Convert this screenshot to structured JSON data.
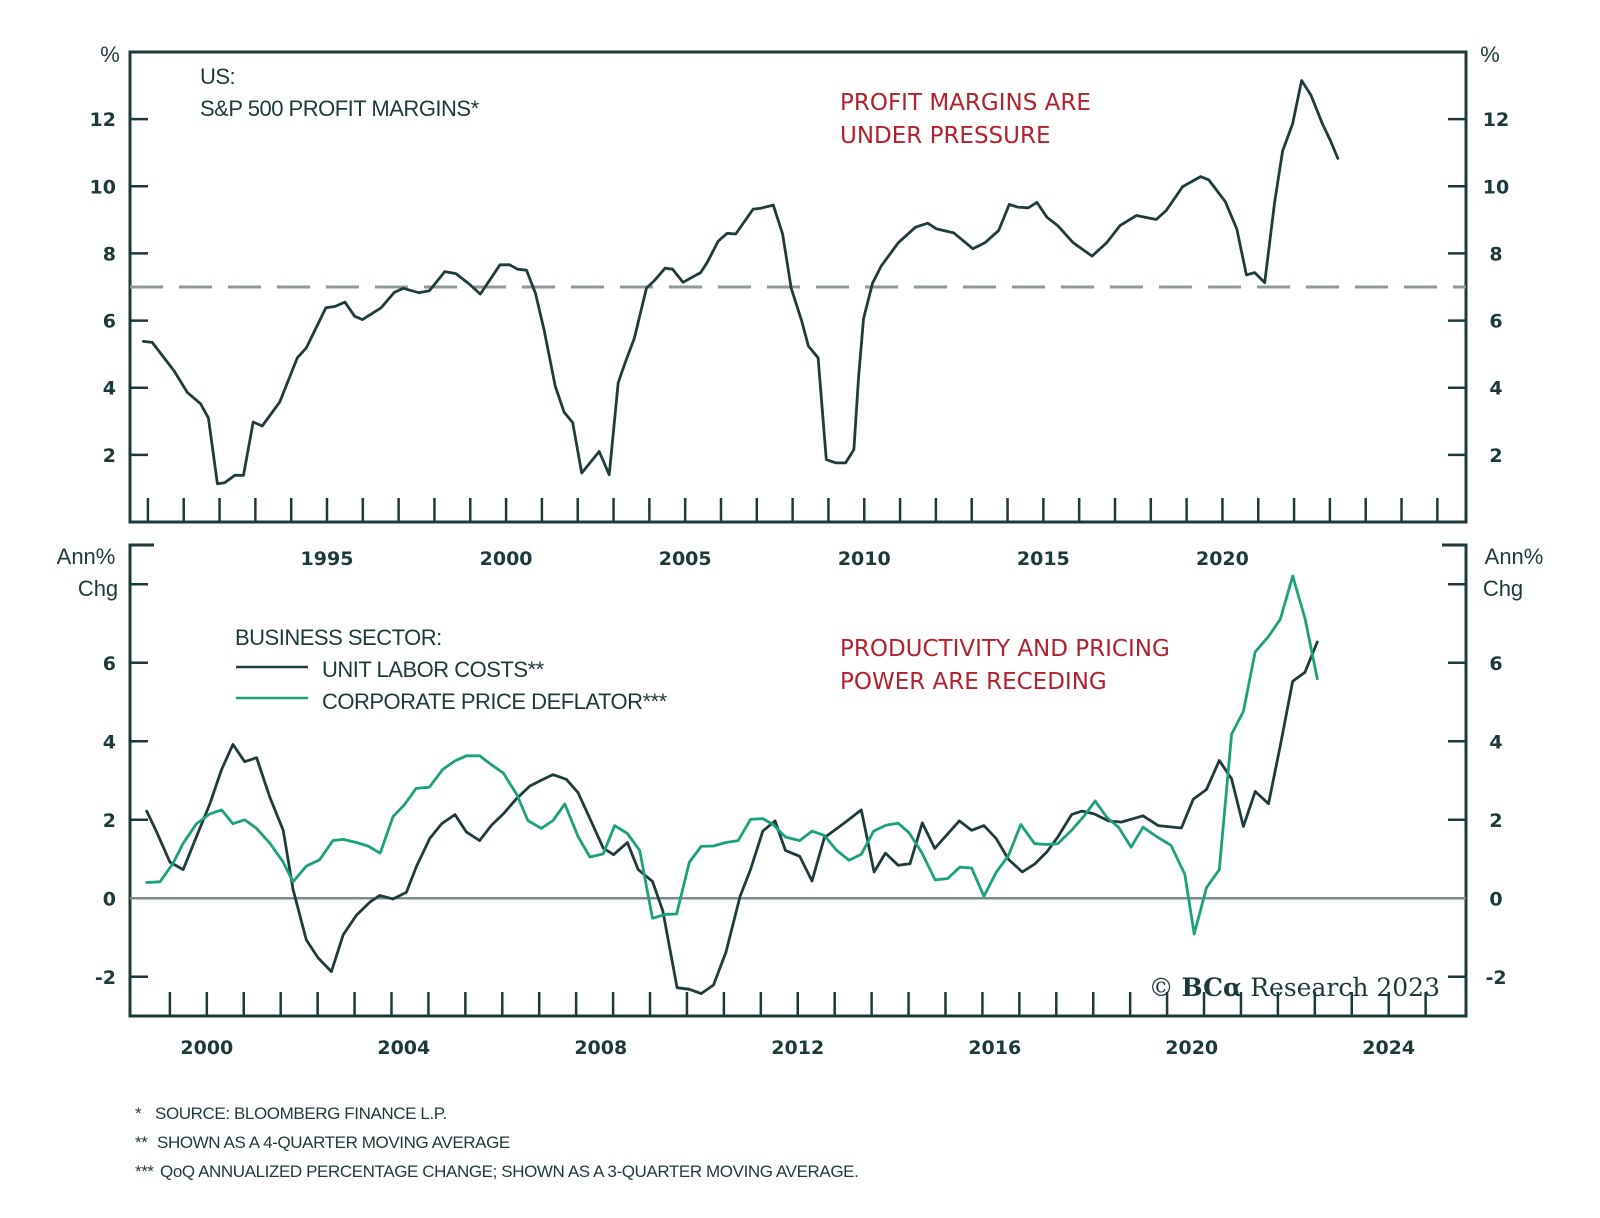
{
  "colors": {
    "ink": "#1d3a3a",
    "ulc": "#1f3c3c",
    "deflator": "#1ba17c",
    "annotation": "#b3202e",
    "dashed": "#8f9a98",
    "zero": "#7d8a8a"
  },
  "chart_data": [
    {
      "type": "line",
      "title_line1": "US:",
      "title_line2": "S&P 500 PROFIT MARGINS*",
      "annotation_line1": "PROFIT MARGINS ARE",
      "annotation_line2": "UNDER PRESSURE",
      "ylabel_left": "%",
      "ylabel_right": "%",
      "ylim": [
        0.0,
        14.0
      ],
      "xlim": [
        1989.5,
        2026.8
      ],
      "y_ticks": [
        2,
        4,
        6,
        8,
        10,
        12
      ],
      "y_tick_labels": [
        "2",
        "4",
        "6",
        "8",
        "10",
        "12"
      ],
      "x_ticks": [
        1995,
        2000,
        2005,
        2010,
        2015,
        2020
      ],
      "x_tick_labels": [
        "1995",
        "2000",
        "2005",
        "2010",
        "2015",
        "2020"
      ],
      "reference_line": {
        "value": 7.0,
        "style": "dashed"
      },
      "grid": false,
      "series": [
        {
          "name": "S&P 500 Profit Margins",
          "x": [
            1989.87,
            1990.12,
            1990.73,
            1991.1,
            1991.47,
            1991.69,
            1991.94,
            1992.14,
            1992.43,
            1992.67,
            1992.94,
            1993.19,
            1993.68,
            1994.17,
            1994.42,
            1994.97,
            1995.22,
            1995.5,
            1995.77,
            1995.99,
            1996.51,
            1996.88,
            1997.13,
            1997.56,
            1997.86,
            1998.29,
            1998.6,
            1998.97,
            1999.28,
            1999.83,
            2000.1,
            2000.32,
            2000.57,
            2000.82,
            2001.06,
            2001.37,
            2001.62,
            2001.86,
            2002.11,
            2002.6,
            2002.88,
            2003.13,
            2003.34,
            2003.58,
            2003.92,
            2004.14,
            2004.44,
            2004.65,
            2004.94,
            2005.43,
            2005.61,
            2005.92,
            2006.17,
            2006.41,
            2006.9,
            2007.09,
            2007.46,
            2007.72,
            2007.96,
            2008.25,
            2008.44,
            2008.71,
            2008.94,
            2009.21,
            2009.48,
            2009.71,
            2009.84,
            2009.98,
            2010.23,
            2010.47,
            2010.95,
            2011.43,
            2011.77,
            2012.02,
            2012.5,
            2013.03,
            2013.37,
            2013.75,
            2014.05,
            2014.28,
            2014.58,
            2014.82,
            2015.1,
            2015.4,
            2015.83,
            2016.36,
            2016.77,
            2017.14,
            2017.6,
            2018.15,
            2018.43,
            2018.89,
            2019.39,
            2019.62,
            2020.08,
            2020.4,
            2020.67,
            2020.9,
            2021.18,
            2021.46,
            2021.68,
            2021.96,
            2022.21,
            2022.47,
            2022.79,
            2023.02,
            2023.22
          ],
          "values": [
            5.38,
            5.35,
            4.5,
            3.86,
            3.52,
            3.1,
            1.14,
            1.17,
            1.39,
            1.39,
            2.98,
            2.86,
            3.57,
            4.89,
            5.18,
            6.38,
            6.42,
            6.55,
            6.13,
            6.03,
            6.38,
            6.84,
            6.96,
            6.83,
            6.89,
            7.46,
            7.4,
            7.09,
            6.79,
            7.66,
            7.66,
            7.53,
            7.5,
            6.81,
            5.72,
            4.05,
            3.27,
            2.96,
            1.46,
            2.1,
            1.41,
            4.15,
            4.79,
            5.47,
            6.97,
            7.19,
            7.56,
            7.53,
            7.14,
            7.43,
            7.72,
            8.36,
            8.6,
            8.58,
            9.32,
            9.34,
            9.44,
            8.58,
            6.96,
            6.0,
            5.24,
            4.89,
            1.86,
            1.76,
            1.76,
            2.16,
            4.28,
            6.05,
            7.11,
            7.62,
            8.32,
            8.78,
            8.9,
            8.73,
            8.61,
            8.14,
            8.32,
            8.68,
            9.46,
            9.38,
            9.36,
            9.52,
            9.08,
            8.83,
            8.32,
            7.92,
            8.32,
            8.83,
            9.13,
            9.01,
            9.28,
            9.99,
            10.29,
            10.19,
            9.54,
            8.73,
            7.36,
            7.43,
            7.13,
            9.54,
            11.05,
            11.86,
            13.15,
            12.72,
            11.86,
            11.35,
            10.83
          ]
        }
      ]
    },
    {
      "type": "line",
      "legend_title": "BUSINESS SECTOR:",
      "annotation_line1": "PRODUCTIVITY AND PRICING",
      "annotation_line2": "POWER ARE RECEDING",
      "ylabel_left_line1": "Ann%",
      "ylabel_left_line2": "Chg",
      "ylabel_right_line1": "Ann%",
      "ylabel_right_line2": "Chg",
      "ylim": [
        -3.0,
        9.0
      ],
      "xlim": [
        1998.44,
        2025.57
      ],
      "y_ticks": [
        -2,
        0,
        2,
        4,
        6,
        8
      ],
      "y_tick_labels": [
        "-2",
        "0",
        "2",
        "4",
        "6",
        ""
      ],
      "x_ticks": [
        2000,
        2004,
        2008,
        2012,
        2016,
        2020,
        2024
      ],
      "x_tick_labels": [
        "2000",
        "2004",
        "2008",
        "2012",
        "2016",
        "2020",
        "2024"
      ],
      "reference_line": {
        "value": 0,
        "style": "solid"
      },
      "legend_position": "top-left",
      "grid": false,
      "series": [
        {
          "name": "UNIT LABOR COSTS**",
          "x": [
            1998.78,
            1998.98,
            1999.25,
            1999.52,
            1999.76,
            2000.06,
            2000.3,
            2000.53,
            2000.77,
            2001.01,
            2001.28,
            2001.55,
            2001.75,
            2002.02,
            2002.26,
            2002.53,
            2002.77,
            2003.04,
            2003.31,
            2003.51,
            2003.78,
            2004.05,
            2004.26,
            2004.53,
            2004.77,
            2005.04,
            2005.27,
            2005.54,
            2005.78,
            2006.02,
            2006.29,
            2006.56,
            2006.83,
            2007.03,
            2007.3,
            2007.54,
            2007.78,
            2008.05,
            2008.26,
            2008.54,
            2008.76,
            2009.05,
            2009.26,
            2009.55,
            2009.8,
            2010.04,
            2010.29,
            2010.54,
            2010.83,
            2011.04,
            2011.29,
            2011.54,
            2011.75,
            2012.04,
            2012.29,
            2012.54,
            2012.97,
            2013.29,
            2013.55,
            2013.78,
            2014.04,
            2014.28,
            2014.53,
            2014.78,
            2015.28,
            2015.53,
            2015.78,
            2016.03,
            2016.28,
            2016.56,
            2016.81,
            2017.06,
            2017.28,
            2017.56,
            2017.77,
            2018.02,
            2018.31,
            2018.57,
            2019.01,
            2019.32,
            2019.79,
            2020.03,
            2020.3,
            2020.56,
            2020.81,
            2021.05,
            2021.29,
            2021.56,
            2021.8,
            2022.05,
            2022.3,
            2022.55
          ],
          "values": [
            2.22,
            1.69,
            0.92,
            0.73,
            1.48,
            2.4,
            3.28,
            3.92,
            3.48,
            3.58,
            2.57,
            1.73,
            0.23,
            -1.06,
            -1.52,
            -1.87,
            -0.93,
            -0.43,
            -0.1,
            0.07,
            -0.02,
            0.15,
            0.82,
            1.53,
            1.9,
            2.13,
            1.69,
            1.47,
            1.86,
            2.15,
            2.54,
            2.86,
            3.03,
            3.15,
            3.03,
            2.69,
            2.03,
            1.28,
            1.11,
            1.42,
            0.73,
            0.43,
            -0.32,
            -2.28,
            -2.32,
            -2.43,
            -2.21,
            -1.38,
            0.05,
            0.73,
            1.71,
            1.97,
            1.22,
            1.07,
            0.44,
            1.54,
            1.94,
            2.25,
            0.67,
            1.15,
            0.84,
            0.88,
            1.92,
            1.27,
            1.97,
            1.73,
            1.85,
            1.52,
            0.99,
            0.67,
            0.87,
            1.18,
            1.56,
            2.13,
            2.22,
            2.15,
            1.97,
            1.94,
            2.1,
            1.85,
            1.79,
            2.52,
            2.77,
            3.51,
            3.04,
            1.83,
            2.72,
            2.41,
            3.89,
            5.53,
            5.76,
            6.53
          ]
        },
        {
          "name": "CORPORATE PRICE DEFLATOR***",
          "x": [
            1998.78,
            1999.05,
            1999.32,
            1999.52,
            1999.79,
            2000.06,
            2000.3,
            2000.53,
            2000.77,
            2001.01,
            2001.28,
            2001.55,
            2001.75,
            2002.02,
            2002.29,
            2002.56,
            2002.77,
            2003.04,
            2003.27,
            2003.52,
            2003.78,
            2004.01,
            2004.25,
            2004.52,
            2004.79,
            2005.04,
            2005.27,
            2005.54,
            2005.78,
            2006.02,
            2006.29,
            2006.52,
            2006.79,
            2007.03,
            2007.27,
            2007.54,
            2007.78,
            2008.05,
            2008.28,
            2008.54,
            2008.79,
            2009.05,
            2009.31,
            2009.54,
            2009.8,
            2010.04,
            2010.29,
            2010.54,
            2010.79,
            2011.04,
            2011.29,
            2011.5,
            2011.75,
            2012.04,
            2012.29,
            2012.54,
            2012.79,
            2013.04,
            2013.29,
            2013.54,
            2013.79,
            2014.04,
            2014.26,
            2014.51,
            2014.79,
            2015.04,
            2015.29,
            2015.53,
            2015.78,
            2016.03,
            2016.28,
            2016.53,
            2016.81,
            2017.06,
            2017.28,
            2017.56,
            2017.81,
            2018.04,
            2018.27,
            2018.52,
            2018.77,
            2019.01,
            2019.3,
            2019.58,
            2019.86,
            2020.05,
            2020.3,
            2020.56,
            2020.81,
            2021.05,
            2021.29,
            2021.56,
            2021.8,
            2022.05,
            2022.3,
            2022.55
          ],
          "values": [
            0.4,
            0.42,
            0.9,
            1.4,
            1.9,
            2.15,
            2.25,
            1.9,
            2.0,
            1.78,
            1.4,
            0.92,
            0.42,
            0.82,
            0.98,
            1.47,
            1.5,
            1.42,
            1.33,
            1.15,
            2.08,
            2.38,
            2.8,
            2.83,
            3.28,
            3.5,
            3.63,
            3.63,
            3.4,
            3.19,
            2.65,
            1.98,
            1.78,
            1.98,
            2.4,
            1.57,
            1.05,
            1.13,
            1.85,
            1.65,
            1.22,
            -0.51,
            -0.41,
            -0.4,
            0.92,
            1.32,
            1.33,
            1.42,
            1.47,
            2.01,
            2.03,
            1.88,
            1.56,
            1.47,
            1.71,
            1.6,
            1.22,
            0.97,
            1.12,
            1.71,
            1.86,
            1.91,
            1.67,
            1.18,
            0.47,
            0.5,
            0.79,
            0.77,
            0.05,
            0.66,
            1.09,
            1.88,
            1.39,
            1.37,
            1.39,
            1.73,
            2.09,
            2.48,
            2.07,
            1.8,
            1.3,
            1.81,
            1.56,
            1.35,
            0.61,
            -0.91,
            0.27,
            0.73,
            4.18,
            4.76,
            6.28,
            6.67,
            7.11,
            8.21,
            7.13,
            5.59
          ]
        }
      ]
    }
  ],
  "copyright": {
    "symbol": "©",
    "brand": "BCα",
    "text": "Research 2023"
  },
  "footnotes": [
    {
      "marker": "*",
      "text": "SOURCE: BLOOMBERG FINANCE L.P."
    },
    {
      "marker": "**",
      "text": "SHOWN AS A 4-QUARTER MOVING AVERAGE"
    },
    {
      "marker": "***",
      "text": "QoQ ANNUALIZED PERCENTAGE CHANGE; SHOWN AS A 3-QUARTER MOVING AVERAGE."
    }
  ]
}
